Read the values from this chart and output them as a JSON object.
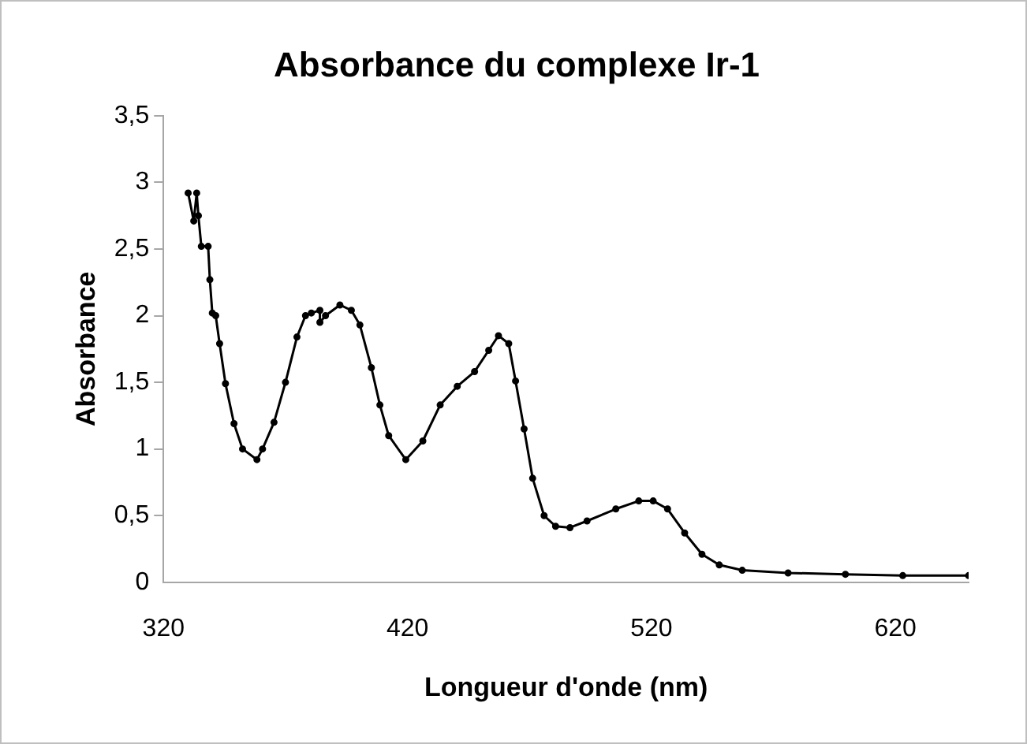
{
  "chart_data": {
    "type": "line",
    "title": "Absorbance du complexe Ir-1",
    "xlabel": "Longueur d'onde (nm)",
    "ylabel": "Absorbance",
    "x": [
      330.1,
      332.4,
      333.6,
      334.3,
      335.5,
      338.3,
      339,
      340,
      341.4,
      343,
      345.4,
      348.9,
      352.4,
      358.3,
      360.6,
      365.3,
      370,
      374.7,
      378.2,
      380.6,
      384.1,
      384.1,
      386.4,
      392.3,
      397,
      400.5,
      405.2,
      408.7,
      412.3,
      419.3,
      426.3,
      433.4,
      440.4,
      447.5,
      453.3,
      457.3,
      461.5,
      464.3,
      467.8,
      471.3,
      476,
      480.7,
      486.6,
      493.6,
      505.4,
      514.8,
      520.7,
      526.6,
      533.6,
      540.7,
      547.8,
      557.2,
      576,
      599.5,
      623,
      650
    ],
    "series": [
      {
        "color": "#000000",
        "values": [
          2.92,
          2.71,
          2.92,
          2.75,
          2.52,
          2.52,
          2.27,
          2.02,
          2.0,
          1.79,
          1.49,
          1.19,
          1.0,
          0.92,
          1.0,
          1.2,
          1.5,
          1.84,
          2.0,
          2.02,
          2.04,
          1.95,
          2.0,
          2.08,
          2.04,
          1.93,
          1.61,
          1.33,
          1.1,
          0.92,
          1.06,
          1.33,
          1.47,
          1.58,
          1.74,
          1.85,
          1.79,
          1.51,
          1.15,
          0.78,
          0.5,
          0.42,
          0.41,
          0.46,
          0.55,
          0.61,
          0.61,
          0.55,
          0.37,
          0.21,
          0.13,
          0.09,
          0.07,
          0.06,
          0.05,
          0.05
        ]
      }
    ],
    "xlim": [
      320,
      650
    ],
    "xticks": [
      320,
      420,
      520,
      620
    ],
    "ylim": [
      0,
      3.5
    ],
    "yticks": [
      0,
      {
        "value": 0.5,
        "label": "0,5"
      },
      1,
      {
        "value": 1.5,
        "label": "1,5"
      },
      2,
      {
        "value": 2.5,
        "label": "2,5"
      },
      3,
      {
        "value": 3.5,
        "label": "3,5"
      }
    ],
    "grid": false,
    "legend": false,
    "marker": "circle",
    "line_style": "solid"
  }
}
